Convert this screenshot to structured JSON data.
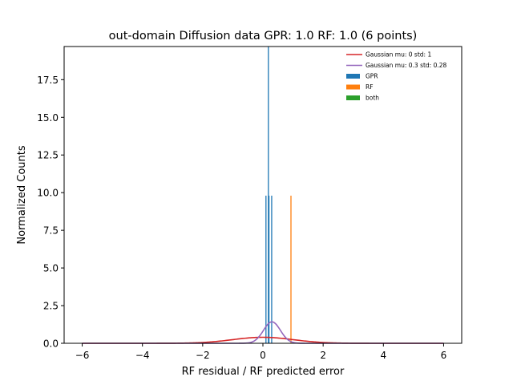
{
  "chart_data": {
    "type": "bar",
    "title": "out-domain Diffusion data GPR: 1.0 RF: 1.0 (6 points)",
    "xlabel": "RF residual / RF predicted error",
    "ylabel": "Normalized Counts",
    "xlim": [
      -6.6,
      6.6
    ],
    "ylim": [
      0,
      19.7
    ],
    "xticks": [
      -6,
      -4,
      -2,
      0,
      2,
      4,
      6
    ],
    "yticks": [
      0.0,
      2.5,
      5.0,
      7.5,
      10.0,
      12.5,
      15.0,
      17.5
    ],
    "xtick_labels": [
      "−6",
      "−4",
      "−2",
      "0",
      "2",
      "4",
      "6"
    ],
    "ytick_labels": [
      "0.0",
      "2.5",
      "5.0",
      "7.5",
      "10.0",
      "12.5",
      "15.0",
      "17.5"
    ],
    "grid": false,
    "legend_position": "top-right",
    "series": [
      {
        "name": "Gaussian mu: 0 std: 1",
        "kind": "line",
        "color": "#d62728",
        "mu": 0,
        "std": 1,
        "x_range": [
          -6,
          6
        ]
      },
      {
        "name": "Gaussian mu: 0.3 std: 0.28",
        "kind": "line",
        "color": "#9467bd",
        "mu": 0.3,
        "std": 0.28,
        "x_range": [
          -6,
          6
        ]
      },
      {
        "name": "GPR",
        "kind": "hist",
        "color": "#1f77b4",
        "bars": [
          {
            "x": 0.1,
            "height": 9.8
          },
          {
            "x": 0.18,
            "height": 19.7
          },
          {
            "x": 0.2,
            "height": 9.8
          },
          {
            "x": 0.29,
            "height": 9.8
          }
        ]
      },
      {
        "name": "RF",
        "kind": "hist",
        "color": "#ff7f0e",
        "bars": [
          {
            "x": 0.93,
            "height": 9.8
          }
        ]
      },
      {
        "name": "both",
        "kind": "hist",
        "color": "#2ca02c",
        "bars": []
      }
    ]
  }
}
